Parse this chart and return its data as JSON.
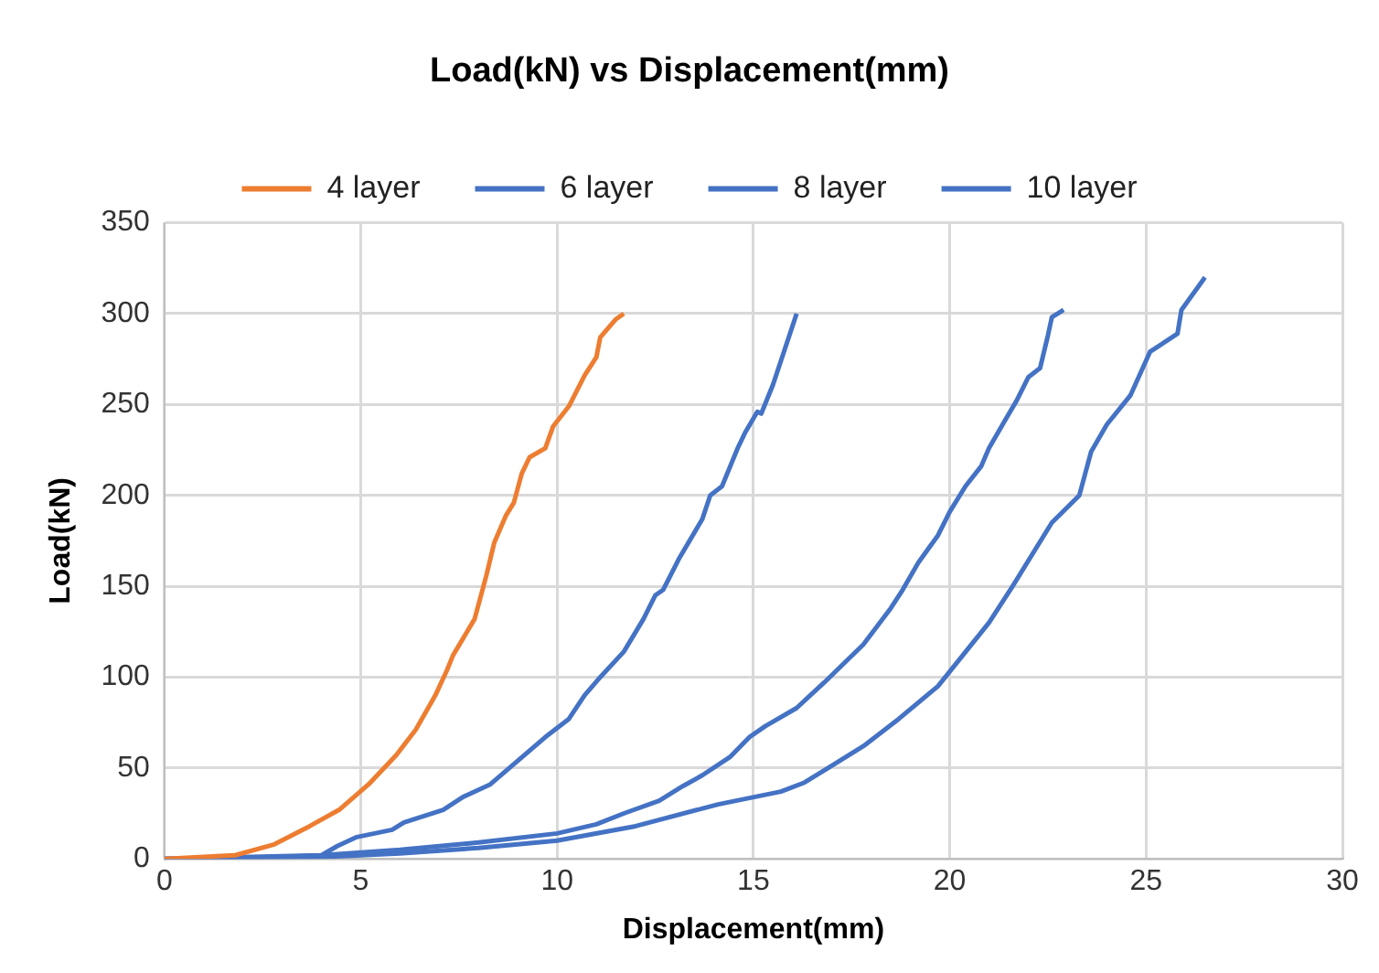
{
  "chart_data": {
    "type": "line",
    "title": "Load(kN) vs Displacement(mm)",
    "xlabel": "Displacement(mm)",
    "ylabel": "Load(kN)",
    "xlim": [
      0,
      30
    ],
    "xticks": [
      0,
      5,
      10,
      15,
      20,
      25,
      30
    ],
    "ylim": [
      0,
      350
    ],
    "yticks": [
      0,
      50,
      100,
      150,
      200,
      250,
      300,
      350
    ],
    "grid": true,
    "legend": "top",
    "marker": "none",
    "line_style": "solid",
    "series": [
      {
        "name": "4 layer",
        "color": "#ed7d31",
        "x": [
          0,
          1.8,
          2.8,
          3.7,
          4.45,
          5.2,
          5.9,
          6.4,
          6.9,
          7.2,
          7.35,
          7.9,
          8.2,
          8.4,
          8.7,
          8.9,
          9.1,
          9.3,
          9.7,
          9.9,
          10.3,
          10.7,
          11,
          11.1,
          11.5,
          11.7
        ],
        "values": [
          0,
          2,
          8,
          18,
          27,
          41,
          57,
          71,
          90,
          104,
          112,
          132,
          156,
          174,
          189,
          196,
          212,
          221,
          226,
          238,
          249,
          266,
          276,
          287,
          297,
          300
        ]
      },
      {
        "name": "6 layer",
        "color": "#4472c4",
        "x": [
          0,
          3,
          4,
          4.4,
          4.9,
          5.8,
          6.1,
          7.1,
          7.6,
          8.3,
          9,
          9.7,
          10.3,
          10.7,
          11.1,
          11.7,
          12.2,
          12.5,
          12.7,
          13.1,
          13.7,
          13.9,
          14.2,
          14.6,
          14.8,
          15.1,
          15.2,
          15.5,
          16.1
        ],
        "values": [
          0,
          1,
          2,
          7,
          12,
          16,
          20,
          27,
          34,
          41,
          54,
          67,
          77,
          90,
          100,
          114,
          132,
          145,
          148,
          165,
          187,
          200,
          205,
          226,
          235,
          246,
          245,
          261,
          300
        ]
      },
      {
        "name": "8 layer",
        "color": "#4472c4",
        "x": [
          0,
          4,
          6,
          8,
          10,
          11,
          11.7,
          12.6,
          13.2,
          13.7,
          14.4,
          14.9,
          15.3,
          16.1,
          16.8,
          17.8,
          18.5,
          18.8,
          19.2,
          19.7,
          20,
          20.4,
          20.8,
          21,
          21.4,
          21.7,
          22,
          22.3,
          22.5,
          22.6,
          22.9
        ],
        "values": [
          0,
          2,
          5,
          9,
          14,
          19,
          25,
          32,
          40,
          46,
          56,
          67,
          73,
          83,
          97,
          118,
          138,
          148,
          163,
          178,
          191,
          205,
          216,
          226,
          241,
          252,
          265,
          270,
          288,
          298,
          302
        ]
      },
      {
        "name": "10 layer",
        "color": "#4472c4",
        "x": [
          0,
          4,
          6,
          8,
          10,
          12,
          14.1,
          15.7,
          16.3,
          16.9,
          17.8,
          18.7,
          19.7,
          21,
          21.6,
          22.6,
          23.3,
          23.6,
          24,
          24.6,
          25.1,
          25.8,
          25.9,
          26.5
        ],
        "values": [
          0,
          1,
          3,
          6,
          10,
          18,
          30,
          37,
          42,
          50,
          62,
          77,
          95,
          130,
          150,
          185,
          200,
          224,
          239,
          255,
          279,
          289,
          302,
          320
        ]
      }
    ]
  }
}
